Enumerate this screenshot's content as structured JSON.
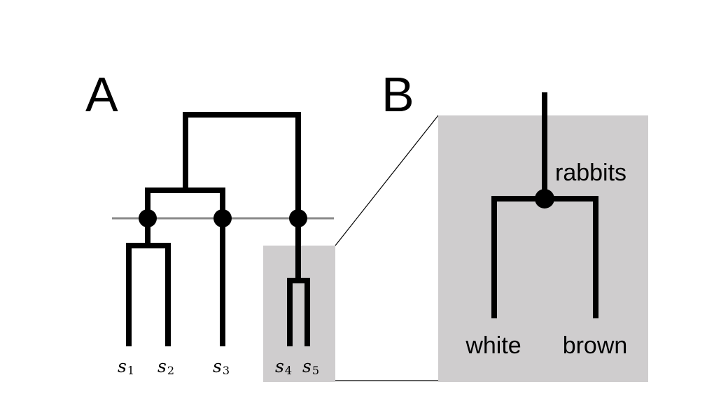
{
  "figure": {
    "panel_a_label": "A",
    "panel_b_label": "B",
    "leaves": [
      {
        "symbol": "s",
        "subscript": "1"
      },
      {
        "symbol": "s",
        "subscript": "2"
      },
      {
        "symbol": "s",
        "subscript": "3"
      },
      {
        "symbol": "s",
        "subscript": "4"
      },
      {
        "symbol": "s",
        "subscript": "5"
      }
    ],
    "zoom": {
      "node_label": "rabbits",
      "left_child": "white",
      "right_child": "brown"
    }
  },
  "colors": {
    "ink": "#000000",
    "shade": "#cfcdce",
    "cut_line": "#8a8a8a"
  }
}
